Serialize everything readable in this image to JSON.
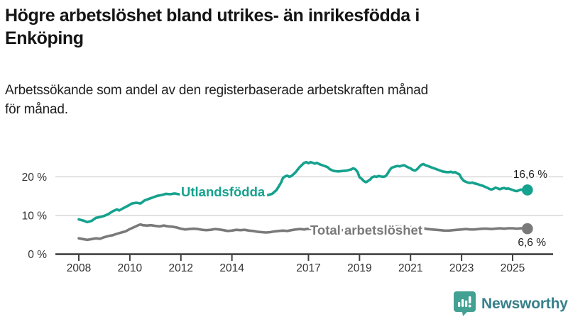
{
  "header": {
    "title_lines": [
      "Högre arbetslöshet bland utrikes- än inrikesfödda i",
      "Enköping"
    ],
    "subtitle_lines": [
      "Arbetssökande som andel av den registerbaserade arbetskraften månad",
      "för månad."
    ]
  },
  "footer": {
    "brand": "Newsworthy"
  },
  "colors": {
    "accent_teal": "#15a28e",
    "series_gray": "#7a7a7a",
    "brand_teal_icon": "#43a193",
    "brand_text": "#37808a",
    "gridline": "#d9d9d9",
    "axis": "#414141",
    "tick_label": "#333333",
    "value_label": "#1d1d1d"
  },
  "chart_data": {
    "type": "line",
    "title": "Högre arbetslöshet bland utrikes- än inrikesfödda i Enköping",
    "xlabel": "",
    "ylabel": "",
    "grid": "horizontal",
    "legend_position": "inline-labels",
    "x_axis": {
      "ticks": [
        2008,
        2010,
        2012,
        2014,
        2017,
        2019,
        2021,
        2023,
        2025
      ],
      "labels": [
        "2008",
        "2010",
        "2012",
        "2014",
        "2017",
        "2019",
        "2021",
        "2023",
        "2025"
      ],
      "range": [
        2007.1,
        2026.6
      ]
    },
    "y_axis": {
      "ticks": [
        0,
        10,
        20
      ],
      "labels": [
        "0 %",
        "10 %",
        "20 %"
      ],
      "range": [
        0,
        25.5
      ]
    },
    "series": [
      {
        "name": "Utlandsfödda",
        "color": "#15a28e",
        "end_value": 16.6,
        "end_label": "16,6 %",
        "points": [
          [
            2008.0,
            9.0
          ],
          [
            2008.17,
            8.7
          ],
          [
            2008.33,
            8.3
          ],
          [
            2008.5,
            8.6
          ],
          [
            2008.67,
            9.4
          ],
          [
            2008.83,
            9.6
          ],
          [
            2009.0,
            9.9
          ],
          [
            2009.17,
            10.4
          ],
          [
            2009.33,
            11.1
          ],
          [
            2009.5,
            11.6
          ],
          [
            2009.58,
            11.3
          ],
          [
            2009.75,
            11.9
          ],
          [
            2009.92,
            12.5
          ],
          [
            2010.08,
            13.1
          ],
          [
            2010.25,
            13.3
          ],
          [
            2010.42,
            13.1
          ],
          [
            2010.58,
            13.9
          ],
          [
            2010.75,
            14.3
          ],
          [
            2010.92,
            14.7
          ],
          [
            2011.08,
            15.1
          ],
          [
            2011.25,
            15.3
          ],
          [
            2011.42,
            15.6
          ],
          [
            2011.58,
            15.5
          ],
          [
            2011.75,
            15.7
          ],
          [
            2011.92,
            15.5
          ],
          [
            2012.08,
            15.5
          ],
          [
            2012.25,
            15.3
          ],
          [
            2012.42,
            15.1
          ],
          [
            2012.58,
            15.0
          ],
          [
            2012.75,
            15.2
          ],
          [
            2012.92,
            14.9
          ],
          [
            2013.08,
            15.0
          ],
          [
            2013.25,
            14.9
          ],
          [
            2013.42,
            15.1
          ],
          [
            2013.58,
            15.2
          ],
          [
            2013.75,
            15.0
          ],
          [
            2013.92,
            15.1
          ],
          [
            2014.08,
            15.0
          ],
          [
            2014.25,
            14.8
          ],
          [
            2014.42,
            15.0
          ],
          [
            2014.58,
            15.1
          ],
          [
            2014.75,
            15.2
          ],
          [
            2014.92,
            15.3
          ],
          [
            2015.08,
            15.2
          ],
          [
            2015.25,
            15.1
          ],
          [
            2015.42,
            15.3
          ],
          [
            2015.58,
            15.6
          ],
          [
            2015.75,
            16.6
          ],
          [
            2015.92,
            18.4
          ],
          [
            2016.0,
            19.7
          ],
          [
            2016.08,
            20.1
          ],
          [
            2016.17,
            20.3
          ],
          [
            2016.25,
            20.0
          ],
          [
            2016.33,
            20.2
          ],
          [
            2016.42,
            20.7
          ],
          [
            2016.5,
            21.2
          ],
          [
            2016.58,
            21.9
          ],
          [
            2016.67,
            22.6
          ],
          [
            2016.75,
            23.1
          ],
          [
            2016.83,
            23.6
          ],
          [
            2016.92,
            23.8
          ],
          [
            2017.0,
            23.5
          ],
          [
            2017.08,
            23.8
          ],
          [
            2017.17,
            23.6
          ],
          [
            2017.25,
            23.4
          ],
          [
            2017.33,
            23.6
          ],
          [
            2017.42,
            23.3
          ],
          [
            2017.5,
            23.1
          ],
          [
            2017.58,
            22.9
          ],
          [
            2017.67,
            22.7
          ],
          [
            2017.75,
            22.5
          ],
          [
            2017.83,
            22.0
          ],
          [
            2017.92,
            21.7
          ],
          [
            2018.0,
            21.5
          ],
          [
            2018.17,
            21.4
          ],
          [
            2018.33,
            21.5
          ],
          [
            2018.5,
            21.6
          ],
          [
            2018.67,
            21.9
          ],
          [
            2018.75,
            22.2
          ],
          [
            2018.83,
            22.0
          ],
          [
            2018.92,
            21.3
          ],
          [
            2019.0,
            19.9
          ],
          [
            2019.08,
            19.5
          ],
          [
            2019.17,
            18.9
          ],
          [
            2019.25,
            18.6
          ],
          [
            2019.33,
            18.9
          ],
          [
            2019.42,
            19.3
          ],
          [
            2019.5,
            19.9
          ],
          [
            2019.58,
            20.1
          ],
          [
            2019.67,
            20.0
          ],
          [
            2019.75,
            20.2
          ],
          [
            2019.83,
            20.1
          ],
          [
            2019.92,
            20.0
          ],
          [
            2020.0,
            20.1
          ],
          [
            2020.08,
            20.6
          ],
          [
            2020.17,
            21.6
          ],
          [
            2020.25,
            22.3
          ],
          [
            2020.33,
            22.5
          ],
          [
            2020.42,
            22.7
          ],
          [
            2020.5,
            22.8
          ],
          [
            2020.58,
            22.7
          ],
          [
            2020.67,
            22.9
          ],
          [
            2020.75,
            23.0
          ],
          [
            2020.83,
            22.7
          ],
          [
            2020.92,
            22.4
          ],
          [
            2021.0,
            22.2
          ],
          [
            2021.08,
            21.8
          ],
          [
            2021.17,
            21.6
          ],
          [
            2021.25,
            21.9
          ],
          [
            2021.33,
            22.5
          ],
          [
            2021.42,
            23.1
          ],
          [
            2021.5,
            23.3
          ],
          [
            2021.58,
            23.0
          ],
          [
            2021.67,
            22.8
          ],
          [
            2021.75,
            22.6
          ],
          [
            2021.83,
            22.4
          ],
          [
            2021.92,
            22.2
          ],
          [
            2022.0,
            22.0
          ],
          [
            2022.08,
            21.8
          ],
          [
            2022.17,
            21.6
          ],
          [
            2022.25,
            21.4
          ],
          [
            2022.33,
            21.3
          ],
          [
            2022.42,
            21.2
          ],
          [
            2022.5,
            21.2
          ],
          [
            2022.58,
            21.3
          ],
          [
            2022.67,
            21.1
          ],
          [
            2022.75,
            21.2
          ],
          [
            2022.83,
            20.9
          ],
          [
            2022.92,
            20.6
          ],
          [
            2023.0,
            19.6
          ],
          [
            2023.08,
            19.0
          ],
          [
            2023.17,
            18.7
          ],
          [
            2023.25,
            18.5
          ],
          [
            2023.33,
            18.4
          ],
          [
            2023.42,
            18.5
          ],
          [
            2023.5,
            18.3
          ],
          [
            2023.58,
            18.2
          ],
          [
            2023.67,
            18.0
          ],
          [
            2023.75,
            17.8
          ],
          [
            2023.83,
            17.7
          ],
          [
            2023.92,
            17.4
          ],
          [
            2024.0,
            17.2
          ],
          [
            2024.08,
            16.9
          ],
          [
            2024.17,
            16.7
          ],
          [
            2024.25,
            16.9
          ],
          [
            2024.33,
            17.2
          ],
          [
            2024.42,
            17.0
          ],
          [
            2024.5,
            16.8
          ],
          [
            2024.58,
            17.0
          ],
          [
            2024.67,
            17.1
          ],
          [
            2024.75,
            16.9
          ],
          [
            2024.83,
            17.0
          ],
          [
            2024.92,
            16.8
          ],
          [
            2025.0,
            16.6
          ],
          [
            2025.08,
            16.4
          ],
          [
            2025.17,
            16.3
          ],
          [
            2025.25,
            16.5
          ],
          [
            2025.33,
            16.7
          ],
          [
            2025.42,
            16.5
          ],
          [
            2025.5,
            16.4
          ],
          [
            2025.58,
            16.6
          ]
        ]
      },
      {
        "name": "Total arbetslöshet",
        "color": "#7a7a7a",
        "end_value": 6.6,
        "end_label": "6,6 %",
        "points": [
          [
            2008.0,
            4.1
          ],
          [
            2008.17,
            3.9
          ],
          [
            2008.33,
            3.7
          ],
          [
            2008.5,
            3.9
          ],
          [
            2008.67,
            4.1
          ],
          [
            2008.83,
            4.0
          ],
          [
            2009.0,
            4.4
          ],
          [
            2009.17,
            4.7
          ],
          [
            2009.33,
            4.9
          ],
          [
            2009.5,
            5.3
          ],
          [
            2009.67,
            5.6
          ],
          [
            2009.83,
            5.9
          ],
          [
            2010.0,
            6.5
          ],
          [
            2010.17,
            7.0
          ],
          [
            2010.33,
            7.5
          ],
          [
            2010.42,
            7.7
          ],
          [
            2010.5,
            7.5
          ],
          [
            2010.67,
            7.4
          ],
          [
            2010.83,
            7.5
          ],
          [
            2011.0,
            7.3
          ],
          [
            2011.17,
            7.2
          ],
          [
            2011.33,
            7.4
          ],
          [
            2011.5,
            7.2
          ],
          [
            2011.67,
            7.1
          ],
          [
            2011.83,
            6.9
          ],
          [
            2012.0,
            6.6
          ],
          [
            2012.17,
            6.4
          ],
          [
            2012.33,
            6.5
          ],
          [
            2012.5,
            6.6
          ],
          [
            2012.67,
            6.5
          ],
          [
            2012.83,
            6.3
          ],
          [
            2013.0,
            6.2
          ],
          [
            2013.17,
            6.3
          ],
          [
            2013.33,
            6.5
          ],
          [
            2013.5,
            6.4
          ],
          [
            2013.67,
            6.2
          ],
          [
            2013.83,
            6.0
          ],
          [
            2014.0,
            6.1
          ],
          [
            2014.17,
            6.3
          ],
          [
            2014.33,
            6.2
          ],
          [
            2014.5,
            6.3
          ],
          [
            2014.67,
            6.1
          ],
          [
            2014.83,
            6.0
          ],
          [
            2015.0,
            5.8
          ],
          [
            2015.17,
            5.7
          ],
          [
            2015.33,
            5.6
          ],
          [
            2015.5,
            5.7
          ],
          [
            2015.67,
            5.9
          ],
          [
            2015.83,
            6.0
          ],
          [
            2016.0,
            6.1
          ],
          [
            2016.17,
            6.0
          ],
          [
            2016.33,
            6.2
          ],
          [
            2016.5,
            6.4
          ],
          [
            2016.67,
            6.5
          ],
          [
            2016.83,
            6.4
          ],
          [
            2017.0,
            6.6
          ],
          [
            2017.17,
            6.5
          ],
          [
            2017.33,
            6.6
          ],
          [
            2017.5,
            6.5
          ],
          [
            2017.67,
            6.4
          ],
          [
            2017.83,
            6.3
          ],
          [
            2018.0,
            6.2
          ],
          [
            2018.17,
            6.3
          ],
          [
            2018.33,
            6.2
          ],
          [
            2018.5,
            6.1
          ],
          [
            2018.67,
            6.2
          ],
          [
            2018.83,
            6.3
          ],
          [
            2019.0,
            6.4
          ],
          [
            2019.17,
            6.3
          ],
          [
            2019.33,
            6.4
          ],
          [
            2019.5,
            6.5
          ],
          [
            2019.67,
            6.4
          ],
          [
            2019.83,
            6.5
          ],
          [
            2020.0,
            6.6
          ],
          [
            2020.17,
            6.9
          ],
          [
            2020.33,
            7.1
          ],
          [
            2020.5,
            7.2
          ],
          [
            2020.67,
            7.1
          ],
          [
            2020.83,
            7.0
          ],
          [
            2021.0,
            7.0
          ],
          [
            2021.17,
            6.9
          ],
          [
            2021.33,
            6.8
          ],
          [
            2021.5,
            6.7
          ],
          [
            2021.67,
            6.5
          ],
          [
            2021.83,
            6.4
          ],
          [
            2022.0,
            6.3
          ],
          [
            2022.17,
            6.2
          ],
          [
            2022.33,
            6.1
          ],
          [
            2022.5,
            6.1
          ],
          [
            2022.67,
            6.2
          ],
          [
            2022.83,
            6.3
          ],
          [
            2023.0,
            6.4
          ],
          [
            2023.17,
            6.5
          ],
          [
            2023.33,
            6.4
          ],
          [
            2023.5,
            6.4
          ],
          [
            2023.67,
            6.5
          ],
          [
            2023.83,
            6.6
          ],
          [
            2024.0,
            6.6
          ],
          [
            2024.17,
            6.5
          ],
          [
            2024.33,
            6.6
          ],
          [
            2024.5,
            6.7
          ],
          [
            2024.67,
            6.6
          ],
          [
            2024.83,
            6.7
          ],
          [
            2025.0,
            6.7
          ],
          [
            2025.17,
            6.6
          ],
          [
            2025.33,
            6.7
          ],
          [
            2025.5,
            6.6
          ],
          [
            2025.58,
            6.6
          ]
        ]
      }
    ]
  }
}
